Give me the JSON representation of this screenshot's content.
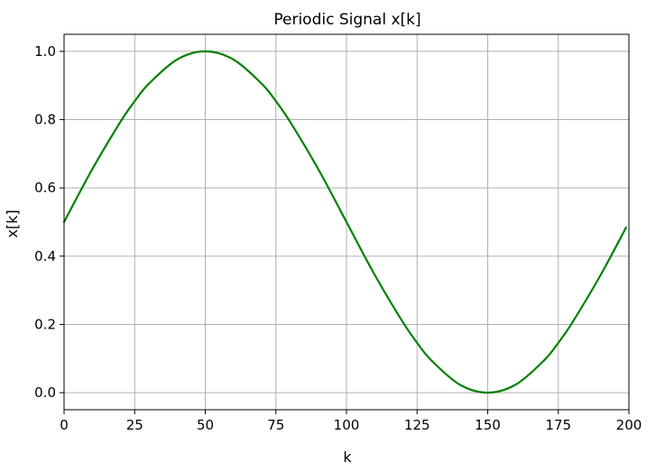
{
  "chart_data": {
    "type": "line",
    "title": "Periodic Signal x[k]",
    "xlabel": "k",
    "ylabel": "x[k]",
    "xlim": [
      0,
      200
    ],
    "ylim": [
      -0.05,
      1.05
    ],
    "xticks": [
      0,
      25,
      50,
      75,
      100,
      125,
      150,
      175,
      200
    ],
    "yticks": [
      0.0,
      0.2,
      0.4,
      0.6,
      0.8,
      1.0
    ],
    "ytick_labels": [
      "0.0",
      "0.2",
      "0.4",
      "0.6",
      "0.8",
      "1.0"
    ],
    "grid": true,
    "series": [
      {
        "color": "#008000",
        "x": [
          0,
          10,
          20,
          25,
          30,
          40,
          50,
          60,
          70,
          75,
          80,
          90,
          100,
          110,
          120,
          125,
          130,
          140,
          150,
          160,
          170,
          175,
          180,
          190,
          199
        ],
        "y": [
          0.5,
          0.655,
          0.794,
          0.854,
          0.905,
          0.976,
          1.0,
          0.976,
          0.905,
          0.854,
          0.794,
          0.655,
          0.5,
          0.345,
          0.206,
          0.146,
          0.095,
          0.024,
          0.0,
          0.024,
          0.095,
          0.146,
          0.206,
          0.345,
          0.484
        ]
      }
    ]
  }
}
